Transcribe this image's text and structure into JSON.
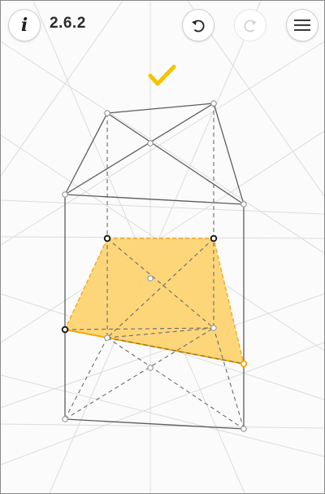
{
  "header": {
    "level_label": "2.6.2",
    "info_icon": "info-icon",
    "undo_icon": "undo-icon",
    "redo_icon": "redo-icon",
    "menu_icon": "hamburger-menu-icon"
  },
  "status": {
    "solved": true,
    "icon": "checkmark-icon"
  },
  "colors": {
    "accent": "#f5c400",
    "fill": "#fdd36f",
    "fill_edge": "#f2a91c",
    "construction": "#d9d9d9",
    "edge": "#5a5a5a"
  }
}
